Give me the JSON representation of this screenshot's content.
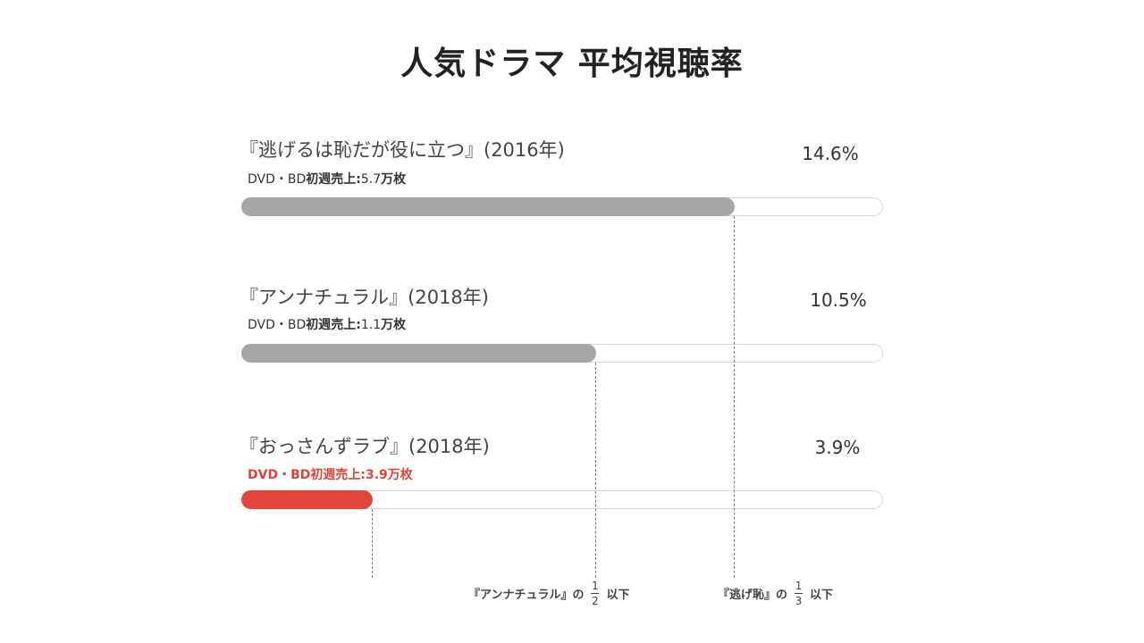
{
  "title": "人気ドラマ 平均視聴率",
  "colors": {
    "bar_default": "#a6a6a6",
    "bar_highlight": "#e2453a",
    "track_border": "#d8d8d8",
    "guide_line": "#5b7fa6"
  },
  "chart_data": {
    "type": "bar",
    "orientation": "horizontal",
    "title": "人気ドラマ 平均視聴率",
    "unit": "%",
    "xlim": [
      0,
      19.0
    ],
    "categories": [
      "『逃げるは恥だが役に立つ』(2016年)",
      "『アンナチュラル』(2018年)",
      "『おっさんずラブ』(2018年)"
    ],
    "values": [
      14.6,
      10.5,
      3.9
    ],
    "value_labels": [
      "14.6%",
      "10.5%",
      "3.9%"
    ],
    "highlight_index": 2,
    "items": [
      {
        "label": "『逃げるは恥だが役に立つ』(2016年)",
        "value": 14.6,
        "value_label": "14.6%",
        "sales_prefix": "DVD・BD",
        "sales_key": "初週売上",
        "sales_colon": ":",
        "sales_num": "5.7",
        "sales_unit": "万枚"
      },
      {
        "label": "『アンナチュラル』(2018年)",
        "value": 10.5,
        "value_label": "10.5%",
        "sales_prefix": "DVD・BD",
        "sales_key": "初週売上",
        "sales_colon": ":",
        "sales_num": "1.1",
        "sales_unit": "万枚"
      },
      {
        "label": "『おっさんずラブ』(2018年)",
        "value": 3.9,
        "value_label": "3.9%",
        "sales_full": "DVD・BD初週売上:3.9万枚"
      }
    ],
    "annotations": [
      {
        "prefix": "『アンナチュラル』の",
        "numerator": "1",
        "denominator": "2",
        "suffix": "以下"
      },
      {
        "prefix": "『逃げ恥』の",
        "numerator": "1",
        "denominator": "3",
        "suffix": "以下"
      }
    ]
  }
}
